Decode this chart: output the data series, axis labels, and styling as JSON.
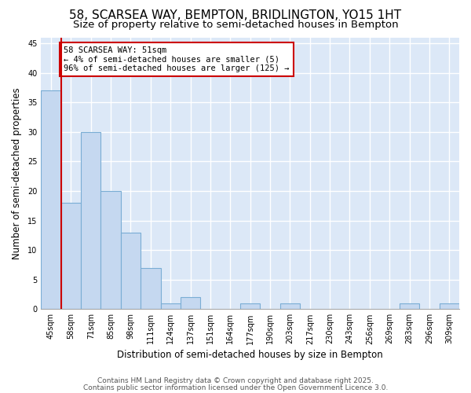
{
  "title1": "58, SCARSEA WAY, BEMPTON, BRIDLINGTON, YO15 1HT",
  "title2": "Size of property relative to semi-detached houses in Bempton",
  "xlabel": "Distribution of semi-detached houses by size in Bempton",
  "ylabel": "Number of semi-detached properties",
  "categories": [
    "45sqm",
    "58sqm",
    "71sqm",
    "85sqm",
    "98sqm",
    "111sqm",
    "124sqm",
    "137sqm",
    "151sqm",
    "164sqm",
    "177sqm",
    "190sqm",
    "203sqm",
    "217sqm",
    "230sqm",
    "243sqm",
    "256sqm",
    "269sqm",
    "283sqm",
    "296sqm",
    "309sqm"
  ],
  "values": [
    37,
    18,
    30,
    20,
    13,
    7,
    1,
    2,
    0,
    0,
    1,
    0,
    1,
    0,
    0,
    0,
    0,
    0,
    1,
    0,
    1
  ],
  "bar_color": "#c5d8f0",
  "bar_edge_color": "#7aadd4",
  "vline_x_index": 1,
  "vline_color": "#cc0000",
  "annotation_text": "58 SCARSEA WAY: 51sqm\n← 4% of semi-detached houses are smaller (5)\n96% of semi-detached houses are larger (125) →",
  "annotation_box_color": "#ffffff",
  "annotation_box_edge_color": "#cc0000",
  "ylim": [
    0,
    46
  ],
  "yticks": [
    0,
    5,
    10,
    15,
    20,
    25,
    30,
    35,
    40,
    45
  ],
  "bg_color": "#ffffff",
  "plot_bg_color": "#dce8f7",
  "grid_color": "#ffffff",
  "footnote1": "Contains HM Land Registry data © Crown copyright and database right 2025.",
  "footnote2": "Contains public sector information licensed under the Open Government Licence 3.0.",
  "title_fontsize": 11,
  "subtitle_fontsize": 9.5,
  "axis_label_fontsize": 8.5,
  "tick_fontsize": 7,
  "footnote_fontsize": 6.5,
  "annotation_fontsize": 7.5
}
